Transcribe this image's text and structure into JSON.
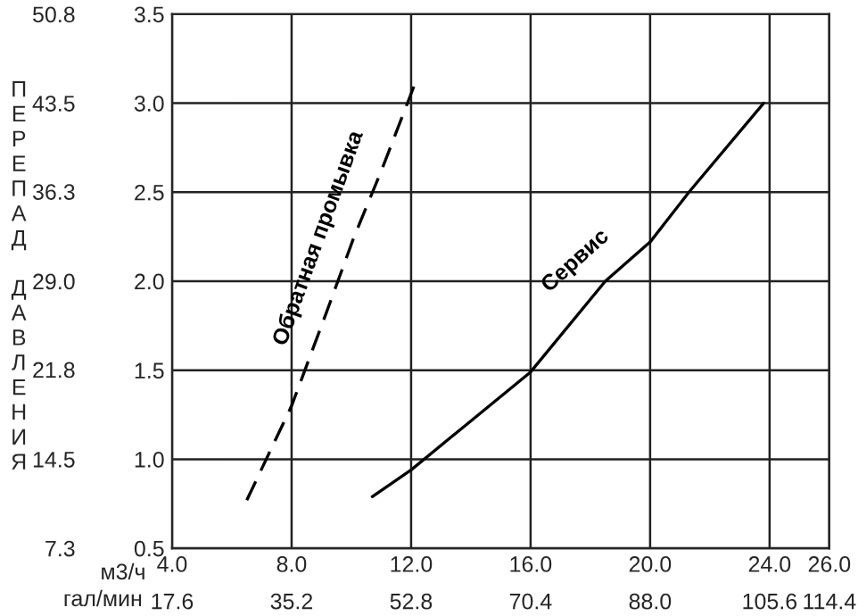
{
  "chart_data": {
    "type": "line",
    "xlabel": "м3/ч",
    "x2label": "гал/мин",
    "ylabel": "ПЕРЕПАД ДАВЛЕНИЯ",
    "xlim": [
      4,
      26
    ],
    "xticks": [
      {
        "value": 4,
        "label": "4.0"
      },
      {
        "value": 8,
        "label": "8.0"
      },
      {
        "value": 12,
        "label": "12.0"
      },
      {
        "value": 16,
        "label": "16.0"
      },
      {
        "value": 20,
        "label": "20.0"
      },
      {
        "value": 24,
        "label": "24.0"
      },
      {
        "value": 26,
        "label": "26.0"
      }
    ],
    "x2lim": [
      17.6,
      114.4
    ],
    "x2ticks": [
      17.6,
      35.2,
      52.8,
      70.4,
      {
        "value": 88,
        "label": "88.0"
      },
      105.6,
      114.4
    ],
    "ylim": [
      0.5,
      3.5
    ],
    "yticks": [
      0.5,
      {
        "value": 1,
        "label": "1.0"
      },
      1.5,
      {
        "value": 2,
        "label": "2.0"
      },
      2.5,
      {
        "value": 3,
        "label": "3.0"
      },
      3.5
    ],
    "y2lim": [
      7.25,
      50.75
    ],
    "y2ticks": [
      {
        "value": 7.25,
        "label": "7.3"
      },
      14.5,
      21.8,
      {
        "value": 29,
        "label": "29.0"
      },
      36.3,
      43.5,
      {
        "value": 50.75,
        "label": "50.8"
      }
    ],
    "grid": true,
    "legend": false,
    "series": [
      {
        "name": "Обратная промывка",
        "color": "#000000",
        "line_style": "dashed",
        "x": [
          6.5,
          8.0,
          9.2,
          10.07,
          11.05,
          12.13
        ],
        "values": [
          0.77,
          1.3,
          1.84,
          2.24,
          2.64,
          3.11
        ]
      },
      {
        "name": "Сервис",
        "color": "#000000",
        "line_style": "solid",
        "x": [
          10.7,
          12.0,
          16.0,
          18.5,
          20.0,
          21.3,
          23.8
        ],
        "values": [
          0.79,
          0.94,
          1.49,
          2.0,
          2.22,
          2.5,
          3.0
        ]
      }
    ]
  }
}
